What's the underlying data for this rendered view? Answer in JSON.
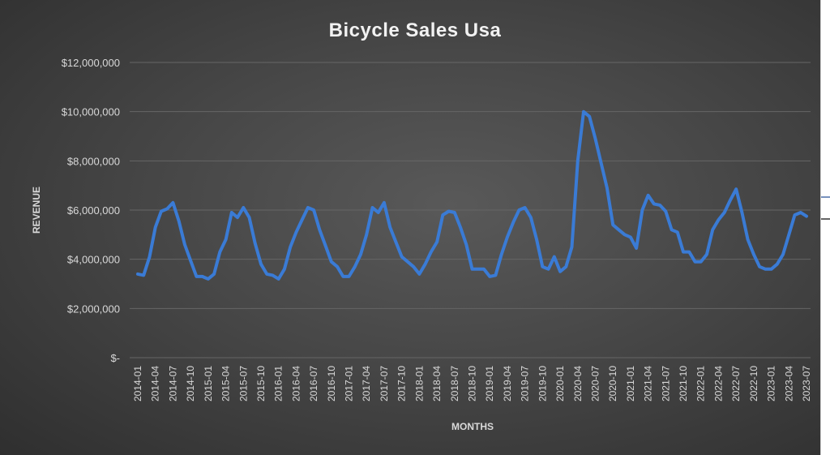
{
  "colors": {
    "background": "#474747",
    "line": "#3a7bd5",
    "text": "#d9d9d9",
    "grid": "#666666"
  },
  "chart_data": {
    "type": "line",
    "title": "Bicycle Sales Usa",
    "xlabel": "MONTHS",
    "ylabel": "REVENUE",
    "ylim": [
      0,
      12000000
    ],
    "y_ticks": [
      0,
      2000000,
      4000000,
      6000000,
      8000000,
      10000000,
      12000000
    ],
    "y_tick_labels": [
      "$-",
      "$2,000,000",
      "$4,000,000",
      "$6,000,000",
      "$8,000,000",
      "$10,000,000",
      "$12,000,000"
    ],
    "x_tick_labels": [
      "2014-01",
      "2014-04",
      "2014-07",
      "2014-10",
      "2015-01",
      "2015-04",
      "2015-07",
      "2015-10",
      "2016-01",
      "2016-04",
      "2016-07",
      "2016-10",
      "2017-01",
      "2017-04",
      "2017-07",
      "2017-10",
      "2018-01",
      "2018-04",
      "2018-07",
      "2018-10",
      "2019-01",
      "2019-04",
      "2019-07",
      "2019-10",
      "2020-01",
      "2020-04",
      "2020-07",
      "2020-10",
      "2021-01",
      "2021-04",
      "2021-07",
      "2021-10",
      "2022-01",
      "2022-04",
      "2022-07",
      "2022-10",
      "2023-01",
      "2023-04",
      "2023-07"
    ],
    "grid": true,
    "legend": "none",
    "series": [
      {
        "x": [
          "2014-01",
          "2014-02",
          "2014-03",
          "2014-04",
          "2014-05",
          "2014-06",
          "2014-07",
          "2014-08",
          "2014-09",
          "2014-10",
          "2014-11",
          "2014-12",
          "2015-01",
          "2015-02",
          "2015-03",
          "2015-04",
          "2015-05",
          "2015-06",
          "2015-07",
          "2015-08",
          "2015-09",
          "2015-10",
          "2015-11",
          "2015-12",
          "2016-01",
          "2016-02",
          "2016-03",
          "2016-04",
          "2016-05",
          "2016-06",
          "2016-07",
          "2016-08",
          "2016-09",
          "2016-10",
          "2016-11",
          "2016-12",
          "2017-01",
          "2017-02",
          "2017-03",
          "2017-04",
          "2017-05",
          "2017-06",
          "2017-07",
          "2017-08",
          "2017-09",
          "2017-10",
          "2017-11",
          "2017-12",
          "2018-01",
          "2018-02",
          "2018-03",
          "2018-04",
          "2018-05",
          "2018-06",
          "2018-07",
          "2018-08",
          "2018-09",
          "2018-10",
          "2018-11",
          "2018-12",
          "2019-01",
          "2019-02",
          "2019-03",
          "2019-04",
          "2019-05",
          "2019-06",
          "2019-07",
          "2019-08",
          "2019-09",
          "2019-10",
          "2019-11",
          "2019-12",
          "2020-01",
          "2020-02",
          "2020-03",
          "2020-04",
          "2020-05",
          "2020-06",
          "2020-07",
          "2020-08",
          "2020-09",
          "2020-10",
          "2020-11",
          "2020-12",
          "2021-01",
          "2021-02",
          "2021-03",
          "2021-04",
          "2021-05",
          "2021-06",
          "2021-07",
          "2021-08",
          "2021-09",
          "2021-10",
          "2021-11",
          "2021-12",
          "2022-01",
          "2022-02",
          "2022-03",
          "2022-04",
          "2022-05",
          "2022-06",
          "2022-07",
          "2022-08",
          "2022-09",
          "2022-10",
          "2022-11",
          "2022-12",
          "2023-01",
          "2023-02",
          "2023-03",
          "2023-04",
          "2023-05",
          "2023-06",
          "2023-07"
        ],
        "values": [
          3400000,
          3350000,
          4100000,
          5300000,
          5950000,
          6050000,
          6300000,
          5550000,
          4600000,
          3950000,
          3300000,
          3300000,
          3200000,
          3400000,
          4300000,
          4800000,
          5900000,
          5700000,
          6100000,
          5700000,
          4650000,
          3800000,
          3400000,
          3350000,
          3200000,
          3600000,
          4500000,
          5100000,
          5600000,
          6100000,
          6000000,
          5200000,
          4550000,
          3900000,
          3700000,
          3300000,
          3300000,
          3700000,
          4200000,
          5000000,
          6100000,
          5900000,
          6300000,
          5300000,
          4700000,
          4100000,
          3900000,
          3700000,
          3400000,
          3800000,
          4300000,
          4700000,
          5800000,
          5950000,
          5900000,
          5300000,
          4600000,
          3600000,
          3600000,
          3600000,
          3300000,
          3350000,
          4200000,
          4900000,
          5500000,
          6000000,
          6100000,
          5700000,
          4800000,
          3700000,
          3600000,
          4100000,
          3500000,
          3700000,
          4500000,
          8000000,
          10000000,
          9800000,
          8900000,
          7900000,
          6900000,
          5400000,
          5200000,
          5000000,
          4900000,
          4450000,
          6000000,
          6600000,
          6250000,
          6200000,
          5950000,
          5200000,
          5100000,
          4300000,
          4300000,
          3900000,
          3900000,
          4200000,
          5200000,
          5600000,
          5900000,
          6400000,
          6850000,
          5900000,
          4800000,
          4200000,
          3700000,
          3600000,
          3600000,
          3800000,
          4200000,
          5000000,
          5800000,
          5900000,
          5750000
        ]
      }
    ]
  }
}
